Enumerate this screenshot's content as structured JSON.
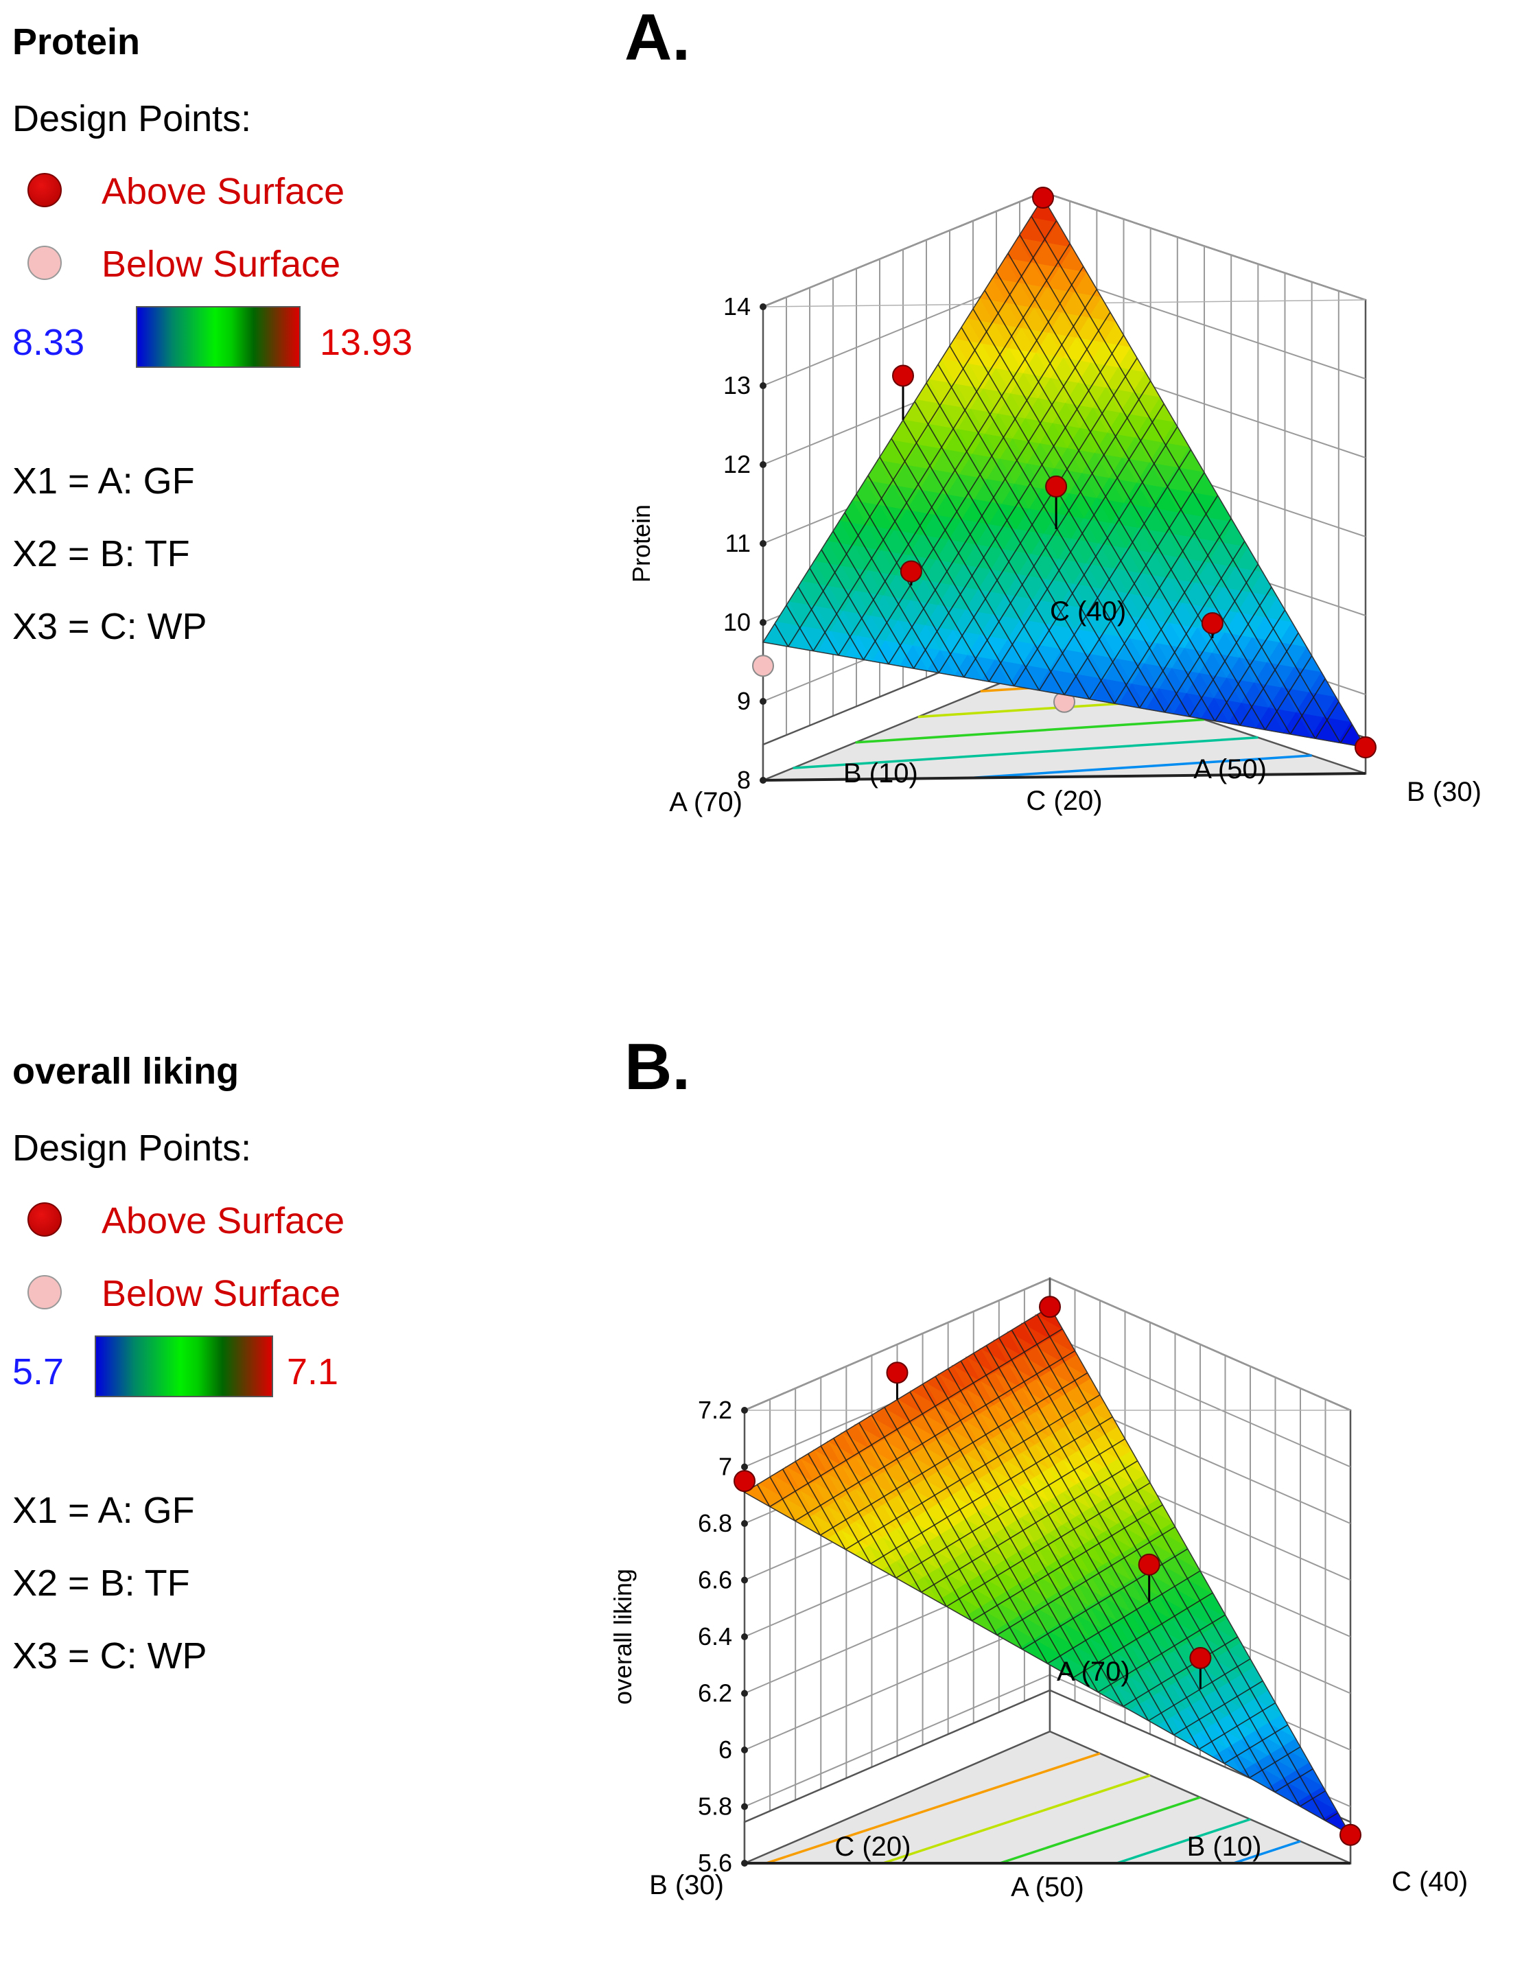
{
  "panel_a": {
    "letter": "A.",
    "legend": {
      "title": "Protein",
      "design_points_label": "Design Points:",
      "above_label": "Above Surface",
      "below_label": "Below Surface",
      "scale_min": "8.33",
      "scale_max": "13.93",
      "factors": [
        "X1 = A: GF",
        "X2 = B: TF",
        "X3 = C: WP"
      ]
    }
  },
  "panel_b": {
    "letter": "B.",
    "legend": {
      "title": "overall liking",
      "design_points_label": "Design Points:",
      "above_label": "Above Surface",
      "below_label": "Below Surface",
      "scale_min": "5.7",
      "scale_max": "7.1",
      "factors": [
        "X1 = A: GF",
        "X2 = B: TF",
        "X3 = C: WP"
      ]
    }
  },
  "colors": {
    "above_point": "#d40000",
    "below_point": "#f6c0c0",
    "label_red": "#d10000",
    "scale_min_blue": "#1a1aff",
    "scale_max_red": "#e00000"
  },
  "chart_data": [
    {
      "type": "surface3d",
      "title": "Protein",
      "zlabel": "Protein",
      "zlim": [
        8,
        14
      ],
      "zticks": [
        8,
        9,
        10,
        11,
        12,
        13,
        14
      ],
      "color_scale": [
        8.33,
        13.93
      ],
      "vertex_labels": {
        "left": "A (70)",
        "right": "B (30)",
        "back": "C (40)",
        "mid_left": "B (10)",
        "mid_right": "A (50)",
        "front_mid": "C (20)"
      },
      "surface_vertices": {
        "left": 9.75,
        "right": 8.33,
        "back": 13.93
      },
      "design_points": [
        {
          "vertex": "back",
          "value": 13.93,
          "position": "above"
        },
        {
          "vertex": "right",
          "value": 8.33,
          "position": "above"
        },
        {
          "vertex": "left",
          "value": 9.45,
          "position": "below"
        },
        {
          "w_left": 0.5,
          "w_right": 0,
          "w_back": 0.5,
          "value": 12.4,
          "position": "above"
        },
        {
          "w_left": 0.333,
          "w_right": 0.333,
          "w_back": 0.333,
          "value": 11.2,
          "position": "above"
        },
        {
          "w_left": 0.667,
          "w_right": 0.167,
          "w_back": 0.167,
          "value": 10.4,
          "position": "above"
        },
        {
          "w_left": 0.167,
          "w_right": 0.667,
          "w_back": 0.167,
          "value": 9.7,
          "position": "above"
        },
        {
          "w_left": 0.5,
          "w_right": 0.5,
          "w_back": 0,
          "value": 8.95,
          "position": "below"
        }
      ]
    },
    {
      "type": "surface3d",
      "title": "overall liking",
      "zlabel": "overall liking",
      "zlim": [
        5.6,
        7.2
      ],
      "zticks": [
        5.6,
        5.8,
        6,
        6.2,
        6.4,
        6.6,
        6.8,
        7,
        7.2
      ],
      "color_scale": [
        5.7,
        7.1
      ],
      "vertex_labels": {
        "left": "B (30)",
        "right": "C (40)",
        "back": "A (70)",
        "mid_left": "C (20)",
        "mid_right": "B (10)",
        "front_mid": "A (50)"
      },
      "surface_vertices": {
        "left": 6.91,
        "right": 5.7,
        "back": 7.1
      },
      "design_points": [
        {
          "vertex": "back",
          "value": 7.1,
          "position": "above"
        },
        {
          "vertex": "right",
          "value": 5.7,
          "position": "above"
        },
        {
          "vertex": "left",
          "value": 6.95,
          "position": "above"
        },
        {
          "w_left": 0.5,
          "w_right": 0,
          "w_back": 0.5,
          "value": 7.1,
          "position": "above"
        },
        {
          "w_left": 0.333,
          "w_right": 0.333,
          "w_back": 0.333,
          "value": 6.25,
          "position": "below"
        },
        {
          "w_left": 0.167,
          "w_right": 0.5,
          "w_back": 0.333,
          "value": 6.5,
          "position": "above"
        },
        {
          "w_left": 0.167,
          "w_right": 0.667,
          "w_back": 0.167,
          "value": 6.25,
          "position": "above"
        }
      ]
    }
  ]
}
